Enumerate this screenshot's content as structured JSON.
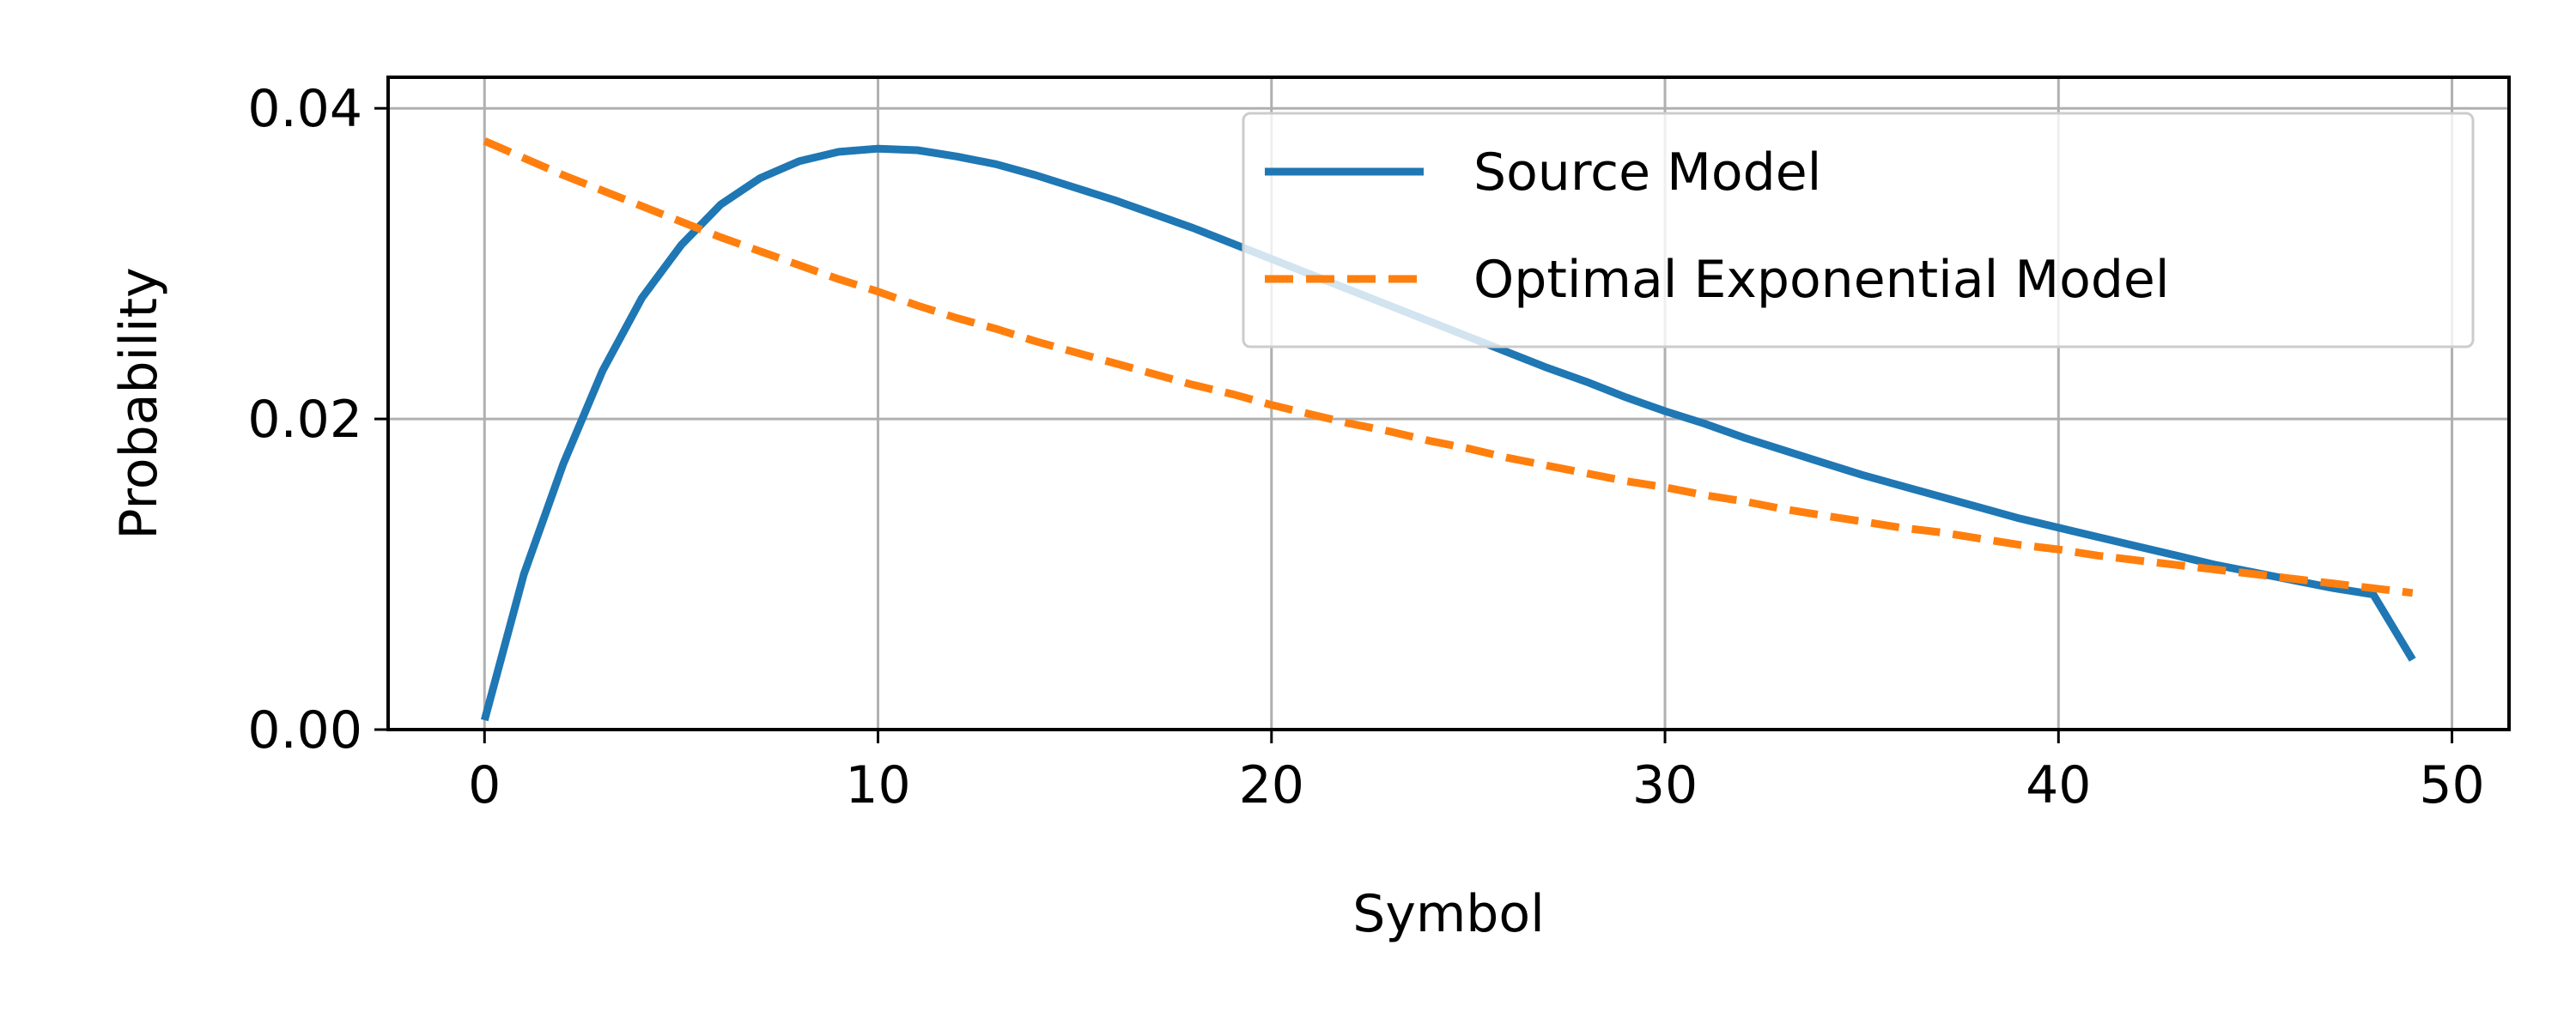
{
  "chart_data": {
    "type": "line",
    "title": "",
    "xlabel": "Symbol",
    "ylabel": "Probability",
    "xlim": [
      -2.45,
      51.45
    ],
    "ylim": [
      0.0,
      0.042
    ],
    "xticks": [
      0,
      10,
      20,
      30,
      40,
      50
    ],
    "xtick_labels": [
      "0",
      "10",
      "20",
      "30",
      "40",
      "50"
    ],
    "yticks": [
      0.0,
      0.02,
      0.04
    ],
    "ytick_labels": [
      "0.00",
      "0.02",
      "0.04"
    ],
    "grid": true,
    "legend_position": "upper-right",
    "series": [
      {
        "name": "Source Model",
        "color": "#1f77b4",
        "style": "solid",
        "x": [
          0,
          1,
          2,
          3,
          4,
          5,
          6,
          7,
          8,
          9,
          10,
          11,
          12,
          13,
          14,
          15,
          16,
          17,
          18,
          19,
          20,
          21,
          22,
          23,
          24,
          25,
          26,
          27,
          28,
          29,
          30,
          31,
          32,
          33,
          34,
          35,
          36,
          37,
          38,
          39,
          40,
          41,
          42,
          43,
          44,
          45,
          46,
          47,
          48,
          49
        ],
        "y": [
          0.0006,
          0.01,
          0.0171,
          0.0231,
          0.0278,
          0.0312,
          0.0338,
          0.0355,
          0.0366,
          0.0372,
          0.0374,
          0.0373,
          0.0369,
          0.0364,
          0.0357,
          0.0349,
          0.0341,
          0.0332,
          0.0323,
          0.0313,
          0.0303,
          0.0293,
          0.0283,
          0.0273,
          0.0263,
          0.0253,
          0.0243,
          0.0233,
          0.0224,
          0.0214,
          0.0205,
          0.0197,
          0.0188,
          0.018,
          0.0172,
          0.0164,
          0.0157,
          0.015,
          0.0143,
          0.0136,
          0.013,
          0.0124,
          0.0118,
          0.0112,
          0.0106,
          0.0101,
          0.0096,
          0.0091,
          0.0087,
          0.0045
        ]
      },
      {
        "name": "Optimal Exponential Model",
        "color": "#ff7f0e",
        "style": "dashed",
        "x": [
          0,
          1,
          2,
          3,
          4,
          5,
          6,
          7,
          8,
          9,
          10,
          11,
          12,
          13,
          14,
          15,
          16,
          17,
          18,
          19,
          20,
          21,
          22,
          23,
          24,
          25,
          26,
          27,
          28,
          29,
          30,
          31,
          32,
          33,
          34,
          35,
          36,
          37,
          38,
          39,
          40,
          41,
          42,
          43,
          44,
          45,
          46,
          47,
          48,
          49
        ],
        "y": [
          0.0379,
          0.0368,
          0.0357,
          0.0347,
          0.0337,
          0.0327,
          0.0317,
          0.0308,
          0.0299,
          0.029,
          0.0282,
          0.0273,
          0.0265,
          0.0258,
          0.025,
          0.0243,
          0.0236,
          0.0229,
          0.0222,
          0.0216,
          0.0209,
          0.0203,
          0.0197,
          0.0192,
          0.0186,
          0.0181,
          0.0175,
          0.017,
          0.0165,
          0.016,
          0.0156,
          0.0151,
          0.0147,
          0.0142,
          0.0138,
          0.0134,
          0.013,
          0.0127,
          0.0123,
          0.0119,
          0.0116,
          0.0112,
          0.0109,
          0.0106,
          0.0103,
          0.01,
          0.0097,
          0.0094,
          0.0091,
          0.0088
        ]
      }
    ]
  }
}
